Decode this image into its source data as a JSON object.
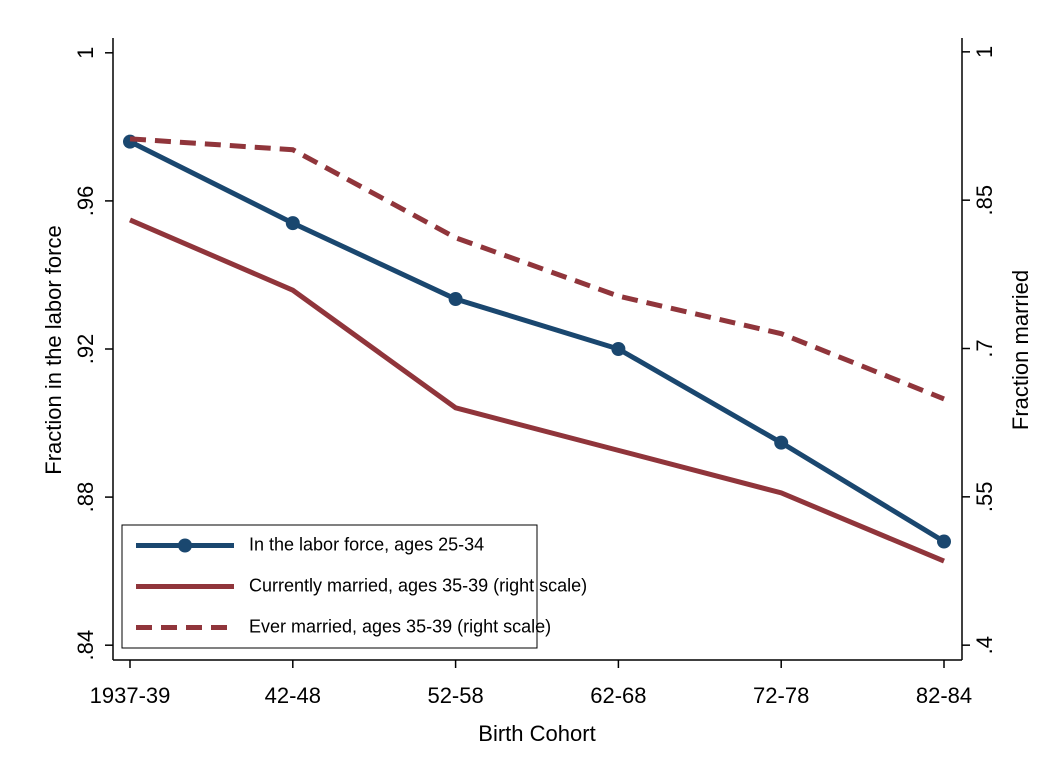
{
  "chart_data": {
    "type": "line",
    "xlabel": "Birth Cohort",
    "ylabel": "Fraction in the labor force",
    "y2label": "Fraction married",
    "categories": [
      "1937-39",
      "42-48",
      "52-58",
      "62-68",
      "72-78",
      "82-84"
    ],
    "series": [
      {
        "name": "In the labor force, ages 25-34",
        "color": "#1a476f",
        "linestyle": "solid",
        "marker": "circle",
        "values": [
          0.976,
          0.954,
          0.9335,
          0.92,
          0.8947,
          0.868
        ]
      },
      {
        "name": "Currently married, ages 35-39 (right scale)",
        "color": "#90353b",
        "linestyle": "solid",
        "axis": "y2",
        "values": [
          0.83,
          0.759,
          0.64,
          0.597,
          0.554,
          0.485
        ]
      },
      {
        "name": "Ever married, ages 35-39 (right scale)",
        "color": "#90353b",
        "linestyle": "dashed",
        "axis": "y2",
        "values": [
          0.912,
          0.901,
          0.812,
          0.753,
          0.715,
          0.649
        ]
      }
    ],
    "ylim": [
      0.836,
      1.004
    ],
    "yticks": [
      {
        "value": 0.84,
        "label": ".84"
      },
      {
        "value": 0.88,
        "label": ".88"
      },
      {
        "value": 0.92,
        "label": ".92"
      },
      {
        "value": 0.96,
        "label": ".96"
      },
      1
    ],
    "y2lim": [
      0.385,
      1.014
    ],
    "y2ticks": [
      {
        "value": 0.4,
        "label": ".4"
      },
      {
        "value": 0.55,
        "label": ".55"
      },
      {
        "value": 0.7,
        "label": ".7"
      },
      {
        "value": 0.85,
        "label": ".85"
      },
      1
    ],
    "grid": false,
    "legend": "bottom-left"
  }
}
